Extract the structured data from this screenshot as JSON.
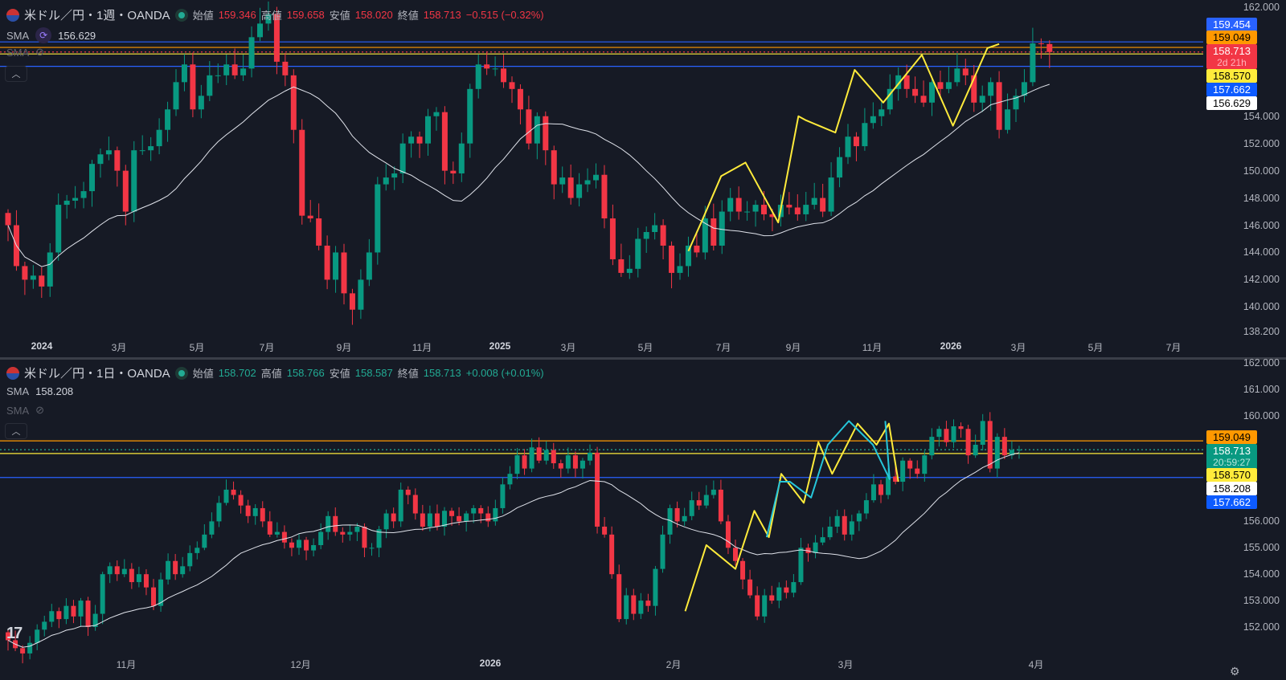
{
  "weekly": {
    "title": "米ドル／円・1週・OANDA",
    "ohlc": {
      "open_label": "始値",
      "open": "159.346",
      "high_label": "高値",
      "high": "159.658",
      "low_label": "安値",
      "low": "158.020",
      "close_label": "終値",
      "close": "158.713",
      "change": "−0.515 (−0.32%)"
    },
    "sma_label": "SMA",
    "sma_value": "156.629",
    "sma2_label": "SMA",
    "price_ticks": [
      "162.000",
      "154.000",
      "152.000",
      "150.000",
      "148.000",
      "146.000",
      "144.000",
      "142.000",
      "140.000",
      "138.200"
    ],
    "price_ticks_values": [
      162,
      154,
      152,
      150,
      148,
      146,
      144,
      142,
      140,
      138.2
    ],
    "x_labels": [
      {
        "t": "2024",
        "bold": true
      },
      {
        "t": "3月"
      },
      {
        "t": "5月"
      },
      {
        "t": "7月"
      },
      {
        "t": "9月"
      },
      {
        "t": "11月"
      },
      {
        "t": "2025",
        "bold": true
      },
      {
        "t": "3月"
      },
      {
        "t": "5月"
      },
      {
        "t": "7月"
      },
      {
        "t": "9月"
      },
      {
        "t": "11月"
      },
      {
        "t": "2026",
        "bold": true
      },
      {
        "t": "3月"
      },
      {
        "t": "5月"
      },
      {
        "t": "7月"
      }
    ],
    "tags": {
      "blue_high": "159.454",
      "orange": "159.049",
      "last": "158.713",
      "countdown": "2d 21h",
      "yellow": "158.570",
      "blue_low": "157.662",
      "sma": "156.629"
    },
    "hlines": [
      {
        "price": 159.454,
        "color": "#2962ff"
      },
      {
        "price": 159.049,
        "color": "#ff9800"
      },
      {
        "price": 158.713,
        "color": "#f23645",
        "dotted": true
      },
      {
        "price": 158.57,
        "color": "#ffeb3b"
      },
      {
        "price": 157.662,
        "color": "#2962ff"
      }
    ],
    "closes": [
      146.0,
      143.0,
      142.0,
      142.3,
      141.5,
      144.0,
      147.5,
      147.8,
      148.0,
      148.5,
      150.5,
      151.2,
      151.5,
      150.0,
      147.0,
      151.5,
      151.5,
      151.8,
      153.0,
      154.5,
      156.5,
      157.8,
      154.5,
      155.5,
      157.0,
      157.0,
      157.8,
      157.0,
      157.5,
      159.8,
      160.8,
      161.5,
      158.0,
      157.0,
      153.0,
      146.7,
      146.5,
      144.5,
      142.0,
      144.0,
      141.0,
      139.8,
      142.0,
      144.0,
      149.0,
      149.5,
      149.8,
      152.0,
      152.5,
      152.0,
      154.0,
      154.3,
      150.0,
      149.8,
      152.0,
      156.0,
      157.8,
      157.5,
      157.5,
      156.5,
      156.0,
      154.5,
      152.0,
      154.0,
      151.5,
      149.0,
      149.5,
      148.0,
      149.0,
      149.3,
      149.7,
      146.5,
      143.5,
      142.5,
      142.8,
      145.0,
      145.5,
      146.0,
      144.5,
      142.5,
      143.0,
      144.5,
      144.0,
      146.5,
      144.5,
      147.0,
      148.0,
      147.0,
      147.0,
      147.5,
      146.8,
      146.6,
      147.5,
      147.3,
      146.8,
      147.5,
      148.0,
      147.0,
      149.5,
      151.0,
      152.5,
      151.8,
      153.5,
      154.0,
      154.5,
      156.0,
      157.0,
      156.0,
      155.5,
      155.0,
      156.5,
      156.0,
      156.5,
      157.5,
      157.0,
      155.0,
      155.5,
      156.5,
      153.0,
      154.5,
      155.5,
      156.5,
      159.346,
      159.3,
      158.713
    ],
    "drawings": [
      {
        "color": "#ffeb3b",
        "points": [
          [
            81,
            144.1
          ],
          [
            82.6,
            146.3
          ],
          [
            84.9,
            149.6
          ],
          [
            87.8,
            150.6
          ],
          [
            91.7,
            146.2
          ],
          [
            94.1,
            154.0
          ],
          [
            95.0,
            153.7
          ],
          [
            98.5,
            152.8
          ],
          [
            100.8,
            157.4
          ],
          [
            104.2,
            155.0
          ],
          [
            108.8,
            158.5
          ],
          [
            112.5,
            153.3
          ],
          [
            116.6,
            159.0
          ],
          [
            118,
            159.3
          ]
        ]
      }
    ]
  },
  "daily": {
    "title": "米ドル／円・1日・OANDA",
    "ohlc": {
      "open_label": "始値",
      "open": "158.702",
      "high_label": "高値",
      "high": "158.766",
      "low_label": "安値",
      "low": "158.587",
      "close_label": "終値",
      "close": "158.713",
      "change": "+0.008 (+0.01%)"
    },
    "sma_label": "SMA",
    "sma_value": "158.208",
    "sma2_label": "SMA",
    "price_ticks": [
      "162.000",
      "161.000",
      "160.000",
      "156.000",
      "155.000",
      "154.000",
      "153.000",
      "152.000"
    ],
    "price_ticks_values": [
      162,
      161,
      160,
      156,
      155,
      154,
      153,
      152
    ],
    "x_labels": [
      {
        "t": "11月"
      },
      {
        "t": "12月"
      },
      {
        "t": "2026",
        "bold": true
      },
      {
        "t": "2月"
      },
      {
        "t": "3月"
      },
      {
        "t": "4月"
      }
    ],
    "tags": {
      "orange": "159.049",
      "last": "158.713",
      "countdown": "20:59:27",
      "yellow": "158.570",
      "sma": "158.208",
      "blue": "157.662"
    },
    "hlines": [
      {
        "price": 159.049,
        "color": "#ff9800"
      },
      {
        "price": 158.713,
        "color": "#22ab94",
        "dotted": true
      },
      {
        "price": 158.57,
        "color": "#ffeb3b"
      },
      {
        "price": 157.662,
        "color": "#2962ff"
      }
    ],
    "closes": [
      151.5,
      151.2,
      151.0,
      151.4,
      151.9,
      152.2,
      152.6,
      152.3,
      152.8,
      152.4,
      153.0,
      152.0,
      152.5,
      154.0,
      154.3,
      154.0,
      154.2,
      153.7,
      154.0,
      153.5,
      152.8,
      153.8,
      154.5,
      154.0,
      154.3,
      154.8,
      155.0,
      155.5,
      156.0,
      156.7,
      157.2,
      157.0,
      156.6,
      156.2,
      156.5,
      156.0,
      155.5,
      155.6,
      155.2,
      155.0,
      155.3,
      154.9,
      155.1,
      155.6,
      156.2,
      155.6,
      155.5,
      155.6,
      155.8,
      155.0,
      155.0,
      155.7,
      156.3,
      156.0,
      157.2,
      157.0,
      156.3,
      155.8,
      156.3,
      155.8,
      156.4,
      156.2,
      156.0,
      156.3,
      156.5,
      156.3,
      156.0,
      156.5,
      157.4,
      157.8,
      158.5,
      158.0,
      158.8,
      158.3,
      158.7,
      158.2,
      158.0,
      158.5,
      158.0,
      158.3,
      158.6,
      155.8,
      155.5,
      154.0,
      152.3,
      153.2,
      152.5,
      153.0,
      152.8,
      154.2,
      155.5,
      156.5,
      156.0,
      156.2,
      156.8,
      156.6,
      157.0,
      157.2,
      156.0,
      155.0,
      154.5,
      153.8,
      153.2,
      152.4,
      153.2,
      153.0,
      153.5,
      153.3,
      153.7,
      155.0,
      154.8,
      155.2,
      155.4,
      155.8,
      156.2,
      155.5,
      156.0,
      156.3,
      156.8,
      157.4,
      157.0,
      157.7,
      157.5,
      158.3,
      158.0,
      157.8,
      158.5,
      159.2,
      159.5,
      159.0,
      159.6,
      159.5,
      158.5,
      158.9,
      159.8,
      158.0,
      159.2,
      158.5,
      158.702,
      158.713
    ],
    "drawings": [
      {
        "color": "#ffeb3b",
        "points": [
          [
            93.1,
            152.6
          ],
          [
            96.0,
            155.1
          ],
          [
            100.0,
            154.2
          ],
          [
            102.6,
            156.4
          ],
          [
            104.6,
            155.4
          ],
          [
            106.3,
            157.8
          ],
          [
            109.4,
            156.7
          ],
          [
            111.4,
            159.0
          ],
          [
            113.3,
            157.8
          ],
          [
            116.8,
            159.7
          ],
          [
            119.4,
            158.9
          ],
          [
            121.1,
            159.7
          ],
          [
            122.4,
            157.5
          ]
        ]
      },
      {
        "color": "#26c6da",
        "points": [
          [
            104.3,
            155.4
          ],
          [
            106.1,
            157.5
          ],
          [
            107.5,
            157.5
          ],
          [
            110.4,
            156.9
          ],
          [
            112.7,
            158.9
          ],
          [
            115.6,
            159.8
          ],
          [
            118.9,
            158.9
          ],
          [
            121.2,
            157.6
          ],
          [
            120.6,
            159.8
          ]
        ]
      }
    ]
  }
}
